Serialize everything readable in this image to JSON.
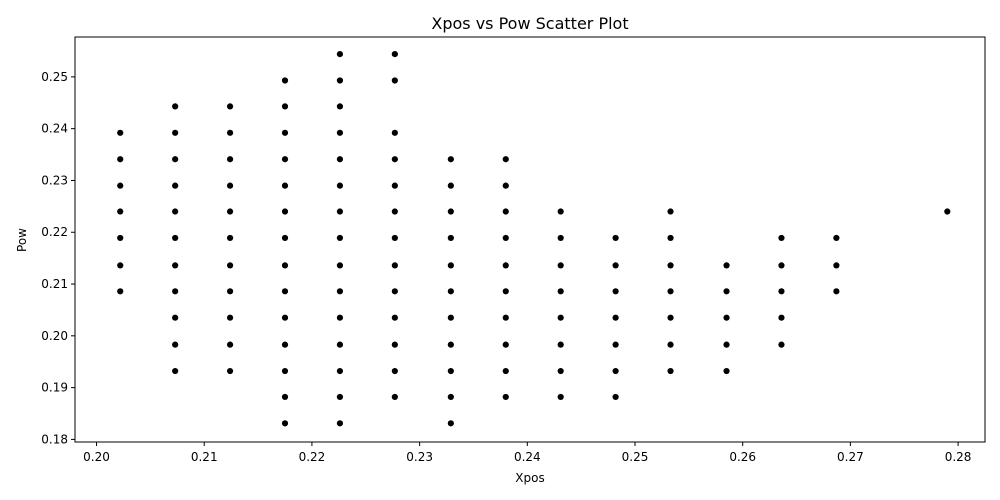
{
  "chart_data": {
    "type": "scatter",
    "title": "Xpos vs Pow Scatter Plot",
    "xlabel": "Xpos",
    "ylabel": "Pow",
    "xlim": [
      0.198,
      0.2825
    ],
    "ylim": [
      0.1795,
      0.2577
    ],
    "xticks": [
      0.2,
      0.21,
      0.22,
      0.23,
      0.24,
      0.25,
      0.26,
      0.27,
      0.28
    ],
    "yticks": [
      0.18,
      0.19,
      0.2,
      0.21,
      0.22,
      0.23,
      0.24,
      0.25
    ],
    "xtick_labels": [
      "0.20",
      "0.21",
      "0.22",
      "0.23",
      "0.24",
      "0.25",
      "0.26",
      "0.27",
      "0.28"
    ],
    "ytick_labels": [
      "0.18",
      "0.19",
      "0.20",
      "0.21",
      "0.22",
      "0.23",
      "0.24",
      "0.25"
    ],
    "grid": false,
    "marker_color": "#000000",
    "points": [
      [
        0.2022,
        0.2392
      ],
      [
        0.2022,
        0.2341
      ],
      [
        0.2022,
        0.229
      ],
      [
        0.2022,
        0.224
      ],
      [
        0.2022,
        0.2189
      ],
      [
        0.2022,
        0.2136
      ],
      [
        0.2022,
        0.2086
      ],
      [
        0.2073,
        0.2443
      ],
      [
        0.2073,
        0.2392
      ],
      [
        0.2073,
        0.2341
      ],
      [
        0.2073,
        0.229
      ],
      [
        0.2073,
        0.224
      ],
      [
        0.2073,
        0.2189
      ],
      [
        0.2073,
        0.2136
      ],
      [
        0.2073,
        0.2086
      ],
      [
        0.2073,
        0.2035
      ],
      [
        0.2073,
        0.1983
      ],
      [
        0.2073,
        0.1932
      ],
      [
        0.2124,
        0.2443
      ],
      [
        0.2124,
        0.2392
      ],
      [
        0.2124,
        0.2341
      ],
      [
        0.2124,
        0.229
      ],
      [
        0.2124,
        0.224
      ],
      [
        0.2124,
        0.2189
      ],
      [
        0.2124,
        0.2136
      ],
      [
        0.2124,
        0.2086
      ],
      [
        0.2124,
        0.2035
      ],
      [
        0.2124,
        0.1983
      ],
      [
        0.2124,
        0.1932
      ],
      [
        0.2175,
        0.2493
      ],
      [
        0.2175,
        0.2443
      ],
      [
        0.2175,
        0.2392
      ],
      [
        0.2175,
        0.2341
      ],
      [
        0.2175,
        0.229
      ],
      [
        0.2175,
        0.224
      ],
      [
        0.2175,
        0.2189
      ],
      [
        0.2175,
        0.2136
      ],
      [
        0.2175,
        0.2086
      ],
      [
        0.2175,
        0.2035
      ],
      [
        0.2175,
        0.1983
      ],
      [
        0.2175,
        0.1932
      ],
      [
        0.2175,
        0.1882
      ],
      [
        0.2175,
        0.1831
      ],
      [
        0.2226,
        0.2544
      ],
      [
        0.2226,
        0.2493
      ],
      [
        0.2226,
        0.2443
      ],
      [
        0.2226,
        0.2392
      ],
      [
        0.2226,
        0.2341
      ],
      [
        0.2226,
        0.229
      ],
      [
        0.2226,
        0.224
      ],
      [
        0.2226,
        0.2189
      ],
      [
        0.2226,
        0.2136
      ],
      [
        0.2226,
        0.2086
      ],
      [
        0.2226,
        0.2035
      ],
      [
        0.2226,
        0.1983
      ],
      [
        0.2226,
        0.1932
      ],
      [
        0.2226,
        0.1882
      ],
      [
        0.2226,
        0.1831
      ],
      [
        0.2277,
        0.2544
      ],
      [
        0.2277,
        0.2493
      ],
      [
        0.2277,
        0.2392
      ],
      [
        0.2277,
        0.2341
      ],
      [
        0.2277,
        0.229
      ],
      [
        0.2277,
        0.224
      ],
      [
        0.2277,
        0.2189
      ],
      [
        0.2277,
        0.2136
      ],
      [
        0.2277,
        0.2086
      ],
      [
        0.2277,
        0.2035
      ],
      [
        0.2277,
        0.1983
      ],
      [
        0.2277,
        0.1932
      ],
      [
        0.2277,
        0.1882
      ],
      [
        0.2329,
        0.2341
      ],
      [
        0.2329,
        0.229
      ],
      [
        0.2329,
        0.224
      ],
      [
        0.2329,
        0.2189
      ],
      [
        0.2329,
        0.2136
      ],
      [
        0.2329,
        0.2086
      ],
      [
        0.2329,
        0.2035
      ],
      [
        0.2329,
        0.1983
      ],
      [
        0.2329,
        0.1932
      ],
      [
        0.2329,
        0.1882
      ],
      [
        0.2329,
        0.1831
      ],
      [
        0.238,
        0.2341
      ],
      [
        0.238,
        0.229
      ],
      [
        0.238,
        0.224
      ],
      [
        0.238,
        0.2189
      ],
      [
        0.238,
        0.2136
      ],
      [
        0.238,
        0.2086
      ],
      [
        0.238,
        0.2035
      ],
      [
        0.238,
        0.1983
      ],
      [
        0.238,
        0.1932
      ],
      [
        0.238,
        0.1882
      ],
      [
        0.2431,
        0.224
      ],
      [
        0.2431,
        0.2189
      ],
      [
        0.2431,
        0.2136
      ],
      [
        0.2431,
        0.2086
      ],
      [
        0.2431,
        0.2035
      ],
      [
        0.2431,
        0.1983
      ],
      [
        0.2431,
        0.1932
      ],
      [
        0.2431,
        0.1882
      ],
      [
        0.2482,
        0.2189
      ],
      [
        0.2482,
        0.2136
      ],
      [
        0.2482,
        0.2086
      ],
      [
        0.2482,
        0.2035
      ],
      [
        0.2482,
        0.1983
      ],
      [
        0.2482,
        0.1932
      ],
      [
        0.2482,
        0.1882
      ],
      [
        0.2533,
        0.224
      ],
      [
        0.2533,
        0.2189
      ],
      [
        0.2533,
        0.2136
      ],
      [
        0.2533,
        0.2086
      ],
      [
        0.2533,
        0.2035
      ],
      [
        0.2533,
        0.1983
      ],
      [
        0.2533,
        0.1932
      ],
      [
        0.2585,
        0.2136
      ],
      [
        0.2585,
        0.2086
      ],
      [
        0.2585,
        0.2035
      ],
      [
        0.2585,
        0.1983
      ],
      [
        0.2585,
        0.1932
      ],
      [
        0.2636,
        0.2189
      ],
      [
        0.2636,
        0.2136
      ],
      [
        0.2636,
        0.2086
      ],
      [
        0.2636,
        0.2035
      ],
      [
        0.2636,
        0.1983
      ],
      [
        0.2687,
        0.2189
      ],
      [
        0.2687,
        0.2136
      ],
      [
        0.2687,
        0.2086
      ],
      [
        0.279,
        0.224
      ]
    ]
  }
}
